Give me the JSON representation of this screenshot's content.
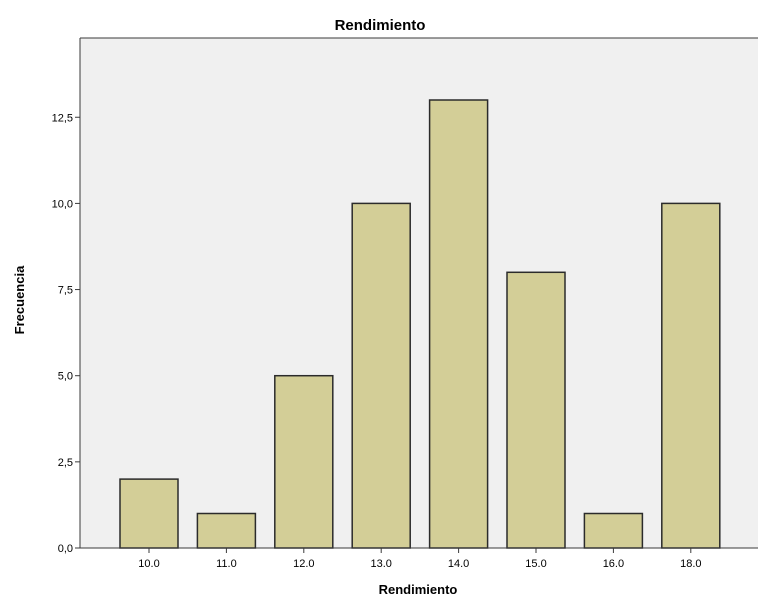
{
  "chart_data": {
    "type": "bar",
    "title": "Rendimiento",
    "xlabel": "Rendimiento",
    "ylabel": "Frecuencia",
    "categories": [
      "10.0",
      "11.0",
      "12.0",
      "13.0",
      "14.0",
      "15.0",
      "16.0",
      "18.0"
    ],
    "values": [
      2,
      1,
      5,
      10,
      13,
      8,
      1,
      10
    ],
    "ylim": [
      0,
      14.8
    ],
    "yticks": [
      0,
      2.5,
      5,
      7.5,
      10,
      12.5
    ],
    "ytick_labels": [
      "0,0",
      "2,5",
      "5,0",
      "7,5",
      "10,0",
      "12,5"
    ],
    "grid": false,
    "legend": "none",
    "colors": {
      "plot_background": "#f0f0f0",
      "bar_fill": "#d3ce97",
      "bar_stroke": "#2b2b2b",
      "axis": "#3a3a3a"
    }
  }
}
